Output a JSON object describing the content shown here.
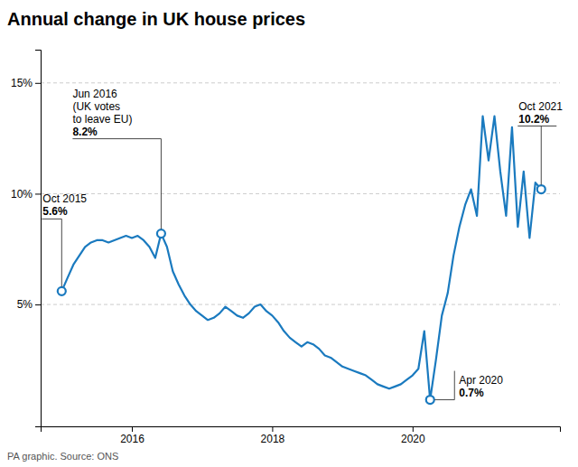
{
  "chart_data": {
    "type": "line",
    "title": "Annual change in UK house prices",
    "source": "PA graphic. Source: ONS",
    "color": "#1a7abf",
    "grid": true,
    "xlim": [
      2014.7,
      2022.1
    ],
    "xticks": [
      2016,
      2018,
      2020
    ],
    "ylim": [
      -0.5,
      16.5
    ],
    "yticks": [
      {
        "value": 5,
        "label": "5%"
      },
      {
        "value": 10,
        "label": "10%"
      },
      {
        "value": 15,
        "label": "15%"
      }
    ],
    "x": [
      2015.0,
      2015.083,
      2015.167,
      2015.25,
      2015.333,
      2015.417,
      2015.5,
      2015.583,
      2015.667,
      2015.75,
      2015.833,
      2015.917,
      2016.0,
      2016.083,
      2016.167,
      2016.25,
      2016.333,
      2016.417,
      2016.5,
      2016.583,
      2016.667,
      2016.75,
      2016.833,
      2016.917,
      2017.0,
      2017.083,
      2017.167,
      2017.25,
      2017.333,
      2017.417,
      2017.5,
      2017.583,
      2017.667,
      2017.75,
      2017.833,
      2017.917,
      2018.0,
      2018.083,
      2018.167,
      2018.25,
      2018.333,
      2018.417,
      2018.5,
      2018.583,
      2018.667,
      2018.75,
      2018.833,
      2018.917,
      2019.0,
      2019.083,
      2019.167,
      2019.25,
      2019.333,
      2019.417,
      2019.5,
      2019.583,
      2019.667,
      2019.75,
      2019.833,
      2019.917,
      2020.0,
      2020.083,
      2020.167,
      2020.25,
      2020.333,
      2020.417,
      2020.5,
      2020.583,
      2020.667,
      2020.75,
      2020.833,
      2020.917,
      2021.0,
      2021.083,
      2021.167,
      2021.25,
      2021.333,
      2021.417,
      2021.5,
      2021.583,
      2021.667,
      2021.75,
      2021.833
    ],
    "values": [
      5.6,
      6.2,
      6.8,
      7.2,
      7.6,
      7.8,
      7.9,
      7.9,
      7.8,
      7.9,
      8.0,
      8.1,
      8.0,
      8.1,
      7.9,
      7.6,
      7.1,
      8.2,
      7.6,
      6.5,
      5.9,
      5.4,
      5.0,
      4.7,
      4.5,
      4.3,
      4.4,
      4.6,
      4.9,
      4.7,
      4.5,
      4.4,
      4.6,
      4.9,
      5.0,
      4.7,
      4.5,
      4.2,
      3.8,
      3.5,
      3.3,
      3.1,
      3.3,
      3.2,
      3.0,
      2.7,
      2.6,
      2.4,
      2.2,
      2.1,
      2.0,
      1.9,
      1.8,
      1.6,
      1.4,
      1.3,
      1.2,
      1.3,
      1.4,
      1.6,
      1.8,
      2.1,
      3.8,
      0.7,
      2.5,
      4.5,
      5.5,
      7.2,
      8.5,
      9.5,
      10.2,
      9.0,
      13.5,
      11.5,
      13.5,
      11.0,
      9.0,
      13.0,
      8.5,
      11.0,
      8.0,
      10.5,
      10.2
    ],
    "annotations": [
      {
        "x": 2015.0,
        "y": 5.6,
        "lines": [
          "Oct 2015",
          "5.6%"
        ]
      },
      {
        "x": 2016.417,
        "y": 8.2,
        "lines": [
          "Jun 2016",
          "(UK votes",
          "to leave EU)",
          "8.2%"
        ]
      },
      {
        "x": 2020.25,
        "y": 0.7,
        "lines": [
          "Apr 2020",
          "0.7%"
        ]
      },
      {
        "x": 2021.833,
        "y": 10.2,
        "lines": [
          "Oct 2021",
          "10.2%"
        ]
      }
    ]
  }
}
